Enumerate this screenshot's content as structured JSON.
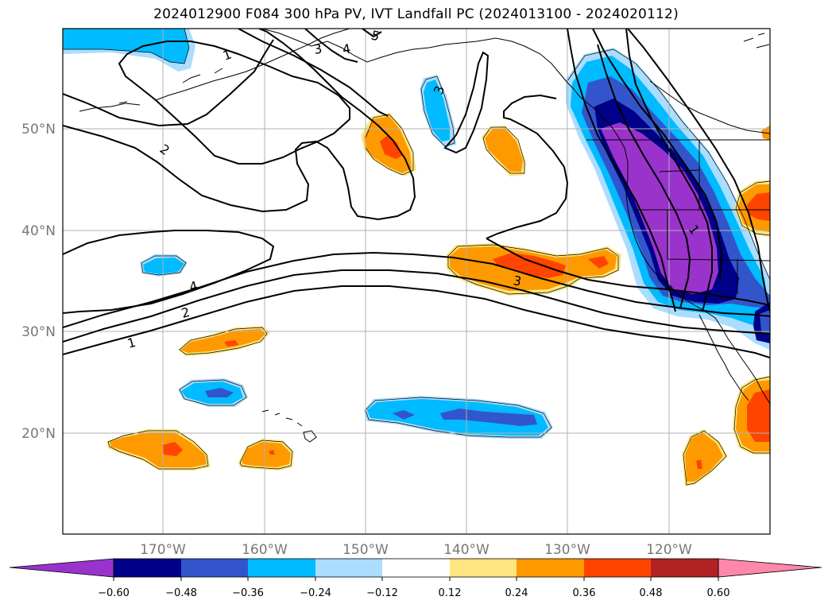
{
  "title": "2024012900 F084 300 hPa PV, IVT Landfall PC (2024013100 - 2024020112)",
  "map": {
    "lat_ticks": [
      "50°N",
      "40°N",
      "30°N",
      "20°N"
    ],
    "lon_ticks": [
      "170°W",
      "160°W",
      "150°W",
      "140°W",
      "130°W",
      "120°W"
    ],
    "contour_labels": [
      "1",
      "2",
      "3",
      "4",
      "5",
      "4",
      "2",
      "1",
      "3",
      "3",
      "1"
    ]
  },
  "colorbar": {
    "tick_labels": [
      "−0.60",
      "−0.48",
      "−0.36",
      "−0.24",
      "−0.12",
      "0.12",
      "0.24",
      "0.36",
      "0.48",
      "0.60"
    ],
    "colors": [
      "#9933cc",
      "#000088",
      "#3355cc",
      "#00bbff",
      "#aaddff",
      "#ffffff",
      "#ffe680",
      "#ff9900",
      "#ff4400",
      "#b22222",
      "#ff88aa"
    ]
  }
}
